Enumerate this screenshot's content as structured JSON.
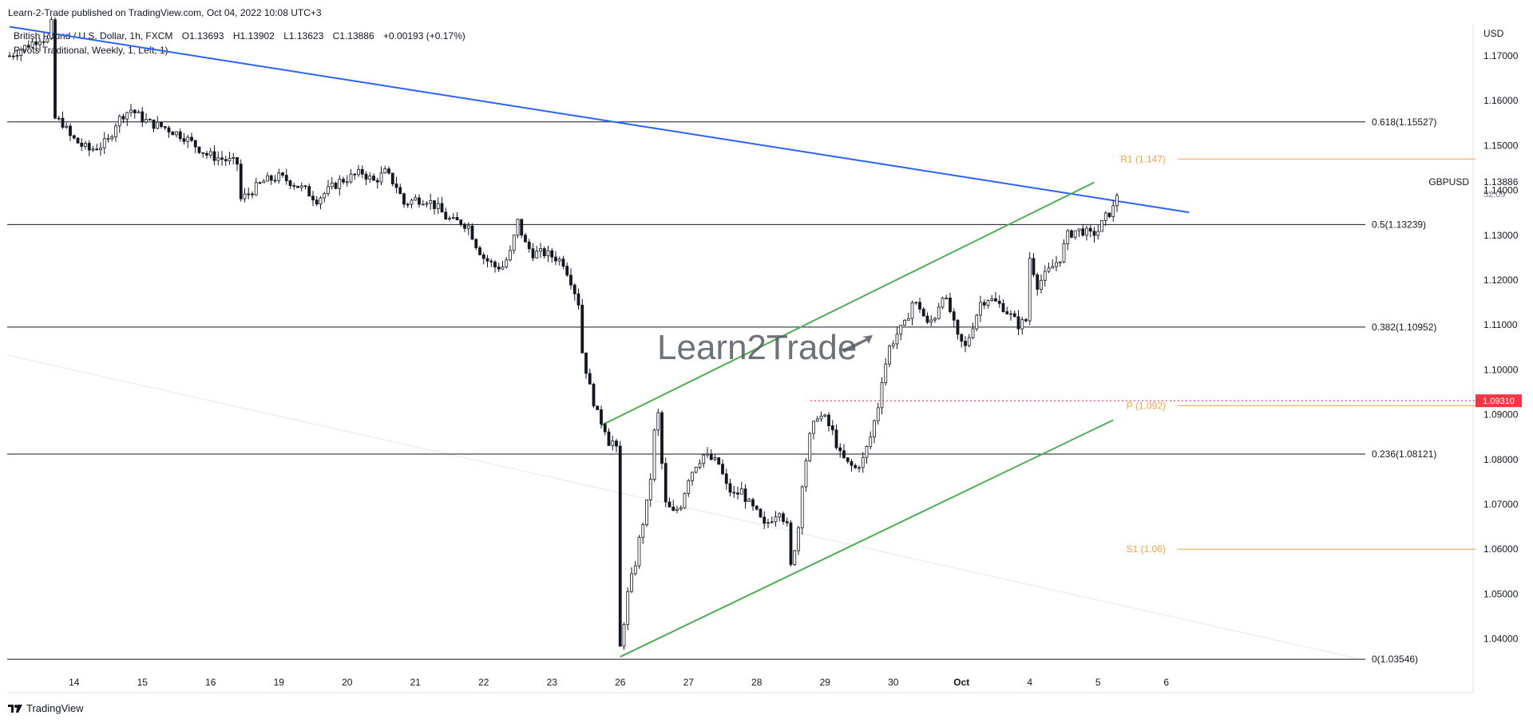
{
  "header": {
    "published": "Learn-2-Trade published on TradingView.com, Oct 04, 2022 10:08 UTC+3"
  },
  "legend": {
    "instrument": "British Pound / U.S. Dollar, 1h, FXCM",
    "open": "O1.13693",
    "high": "H1.13902",
    "low": "L1.13623",
    "close": "C1.13886",
    "change": "+0.00193 (+0.17%)",
    "indicator": "Pivots Traditional, Weekly, 1, Left, 1)"
  },
  "watermark": "Learn2Trade",
  "branding": "TradingView",
  "colors": {
    "candle": "#131722",
    "trendline": "#2962ff",
    "channel": "#4caf50",
    "pivot": "#f7a040",
    "price_marker": "#f23645",
    "fib": "#131722"
  },
  "chart_data": {
    "type": "candlestick",
    "symbol": "GBPUSD",
    "timeframe": "1h",
    "currency": "USD",
    "last_price": "1.13886",
    "countdown": "52:09",
    "price_marker": {
      "value": 1.0931,
      "label": "1.09310"
    },
    "ylim": [
      1.03,
      1.18
    ],
    "y_ticks": [
      {
        "value": 1.17,
        "label": "1.17000"
      },
      {
        "value": 1.16,
        "label": "1.16000"
      },
      {
        "value": 1.15,
        "label": "1.15000"
      },
      {
        "value": 1.14,
        "label": "1.14000"
      },
      {
        "value": 1.13,
        "label": "1.13000"
      },
      {
        "value": 1.12,
        "label": "1.12000"
      },
      {
        "value": 1.11,
        "label": "1.11000"
      },
      {
        "value": 1.1,
        "label": "1.10000"
      },
      {
        "value": 1.09,
        "label": "1.09000"
      },
      {
        "value": 1.08,
        "label": "1.08000"
      },
      {
        "value": 1.07,
        "label": "1.07000"
      },
      {
        "value": 1.06,
        "label": "1.06000"
      },
      {
        "value": 1.05,
        "label": "1.05000"
      },
      {
        "value": 1.04,
        "label": "1.04000"
      }
    ],
    "x_ticks": [
      "14",
      "15",
      "16",
      "19",
      "20",
      "21",
      "22",
      "23",
      "26",
      "27",
      "28",
      "29",
      "30",
      "Oct",
      "4",
      "5",
      "6"
    ],
    "fib_levels": [
      {
        "value": 1.15527,
        "label": "0.618(1.15527)"
      },
      {
        "value": 1.13239,
        "label": "0.5(1.13239)"
      },
      {
        "value": 1.10952,
        "label": "0.382(1.10952)"
      },
      {
        "value": 1.08121,
        "label": "0.236(1.08121)"
      },
      {
        "value": 1.03546,
        "label": "0(1.03546)"
      }
    ],
    "pivots": [
      {
        "value": 1.147,
        "label": "R1 (1.147)"
      },
      {
        "value": 1.092,
        "label": "P (1.092)"
      },
      {
        "value": 1.06,
        "label": "S1 (1.06)"
      }
    ],
    "trendlines": [
      {
        "name": "descending",
        "from": {
          "bar": 0,
          "price": 1.1765
        },
        "to": {
          "bar": 311,
          "price": 1.1351
        }
      },
      {
        "name": "channel-upper",
        "from": {
          "bar": 156,
          "price": 1.0876
        },
        "to": {
          "bar": 286,
          "price": 1.1418
        }
      },
      {
        "name": "channel-lower",
        "from": {
          "bar": 161,
          "price": 1.036
        },
        "to": {
          "bar": 291,
          "price": 1.0888
        }
      }
    ],
    "path": [
      [
        0,
        1.17
      ],
      [
        4,
        1.172
      ],
      [
        8,
        1.174
      ],
      [
        10,
        1.1735
      ],
      [
        11,
        1.177
      ],
      [
        12,
        1.156
      ],
      [
        14,
        1.155
      ],
      [
        16,
        1.152
      ],
      [
        19,
        1.15
      ],
      [
        21,
        1.149
      ],
      [
        24,
        1.15
      ],
      [
        26,
        1.151
      ],
      [
        28,
        1.155
      ],
      [
        30,
        1.157
      ],
      [
        32,
        1.158
      ],
      [
        35,
        1.156
      ],
      [
        37,
        1.155
      ],
      [
        41,
        1.154
      ],
      [
        46,
        1.152
      ],
      [
        49,
        1.15
      ],
      [
        52,
        1.148
      ],
      [
        56,
        1.147
      ],
      [
        60,
        1.146
      ],
      [
        61,
        1.138
      ],
      [
        64,
        1.14
      ],
      [
        67,
        1.142
      ],
      [
        71,
        1.143
      ],
      [
        74,
        1.142
      ],
      [
        78,
        1.14
      ],
      [
        81,
        1.138
      ],
      [
        84,
        1.14
      ],
      [
        87,
        1.142
      ],
      [
        90,
        1.143
      ],
      [
        93,
        1.144
      ],
      [
        96,
        1.142
      ],
      [
        99,
        1.144
      ],
      [
        102,
        1.141
      ],
      [
        104,
        1.137
      ],
      [
        107,
        1.138
      ],
      [
        110,
        1.138
      ],
      [
        113,
        1.136
      ],
      [
        115,
        1.134
      ],
      [
        117,
        1.133
      ],
      [
        119,
        1.133
      ],
      [
        121,
        1.132
      ],
      [
        123,
        1.128
      ],
      [
        125,
        1.125
      ],
      [
        128,
        1.123
      ],
      [
        130,
        1.123
      ],
      [
        132,
        1.126
      ],
      [
        134,
        1.133
      ],
      [
        136,
        1.128
      ],
      [
        138,
        1.126
      ],
      [
        141,
        1.126
      ],
      [
        144,
        1.125
      ],
      [
        146,
        1.124
      ],
      [
        148,
        1.12
      ],
      [
        150,
        1.115
      ],
      [
        151,
        1.104
      ],
      [
        153,
        1.096
      ],
      [
        155,
        1.09
      ],
      [
        157,
        1.087
      ],
      [
        158,
        1.084
      ],
      [
        159,
        1.084
      ],
      [
        160,
        1.082
      ],
      [
        161,
        1.038
      ],
      [
        163,
        1.05
      ],
      [
        165,
        1.057
      ],
      [
        166,
        1.062
      ],
      [
        168,
        1.07
      ],
      [
        169,
        1.076
      ],
      [
        170,
        1.086
      ],
      [
        171,
        1.09
      ],
      [
        172,
        1.079
      ],
      [
        173,
        1.07
      ],
      [
        175,
        1.068
      ],
      [
        177,
        1.07
      ],
      [
        179,
        1.076
      ],
      [
        181,
        1.079
      ],
      [
        183,
        1.081
      ],
      [
        185,
        1.08
      ],
      [
        187,
        1.079
      ],
      [
        189,
        1.074
      ],
      [
        191,
        1.072
      ],
      [
        193,
        1.073
      ],
      [
        195,
        1.07
      ],
      [
        197,
        1.068
      ],
      [
        199,
        1.065
      ],
      [
        201,
        1.067
      ],
      [
        203,
        1.069
      ],
      [
        205,
        1.065
      ],
      [
        206,
        1.056
      ],
      [
        208,
        1.065
      ],
      [
        209,
        1.075
      ],
      [
        211,
        1.085
      ],
      [
        213,
        1.09
      ],
      [
        215,
        1.089
      ],
      [
        217,
        1.086
      ],
      [
        219,
        1.081
      ],
      [
        221,
        1.079
      ],
      [
        223,
        1.078
      ],
      [
        225,
        1.08
      ],
      [
        227,
        1.085
      ],
      [
        229,
        1.092
      ],
      [
        230,
        1.098
      ],
      [
        232,
        1.105
      ],
      [
        234,
        1.108
      ],
      [
        236,
        1.11
      ],
      [
        238,
        1.115
      ],
      [
        240,
        1.114
      ],
      [
        242,
        1.11
      ],
      [
        244,
        1.112
      ],
      [
        246,
        1.117
      ],
      [
        248,
        1.113
      ],
      [
        250,
        1.107
      ],
      [
        252,
        1.105
      ],
      [
        254,
        1.11
      ],
      [
        256,
        1.115
      ],
      [
        258,
        1.116
      ],
      [
        260,
        1.115
      ],
      [
        262,
        1.114
      ],
      [
        264,
        1.112
      ],
      [
        266,
        1.11
      ],
      [
        268,
        1.111
      ],
      [
        269,
        1.125
      ],
      [
        271,
        1.119
      ],
      [
        273,
        1.121
      ],
      [
        275,
        1.123
      ],
      [
        277,
        1.125
      ],
      [
        279,
        1.13
      ],
      [
        281,
        1.131
      ],
      [
        283,
        1.131
      ],
      [
        285,
        1.13
      ],
      [
        287,
        1.131
      ],
      [
        289,
        1.134
      ],
      [
        291,
        1.136
      ],
      [
        292,
        1.1389
      ]
    ],
    "x_tick_bars": [
      17,
      35,
      53,
      71,
      89,
      107,
      125,
      143,
      161,
      179,
      197,
      215,
      233,
      251,
      269,
      287,
      305
    ],
    "bar_count": 312
  }
}
